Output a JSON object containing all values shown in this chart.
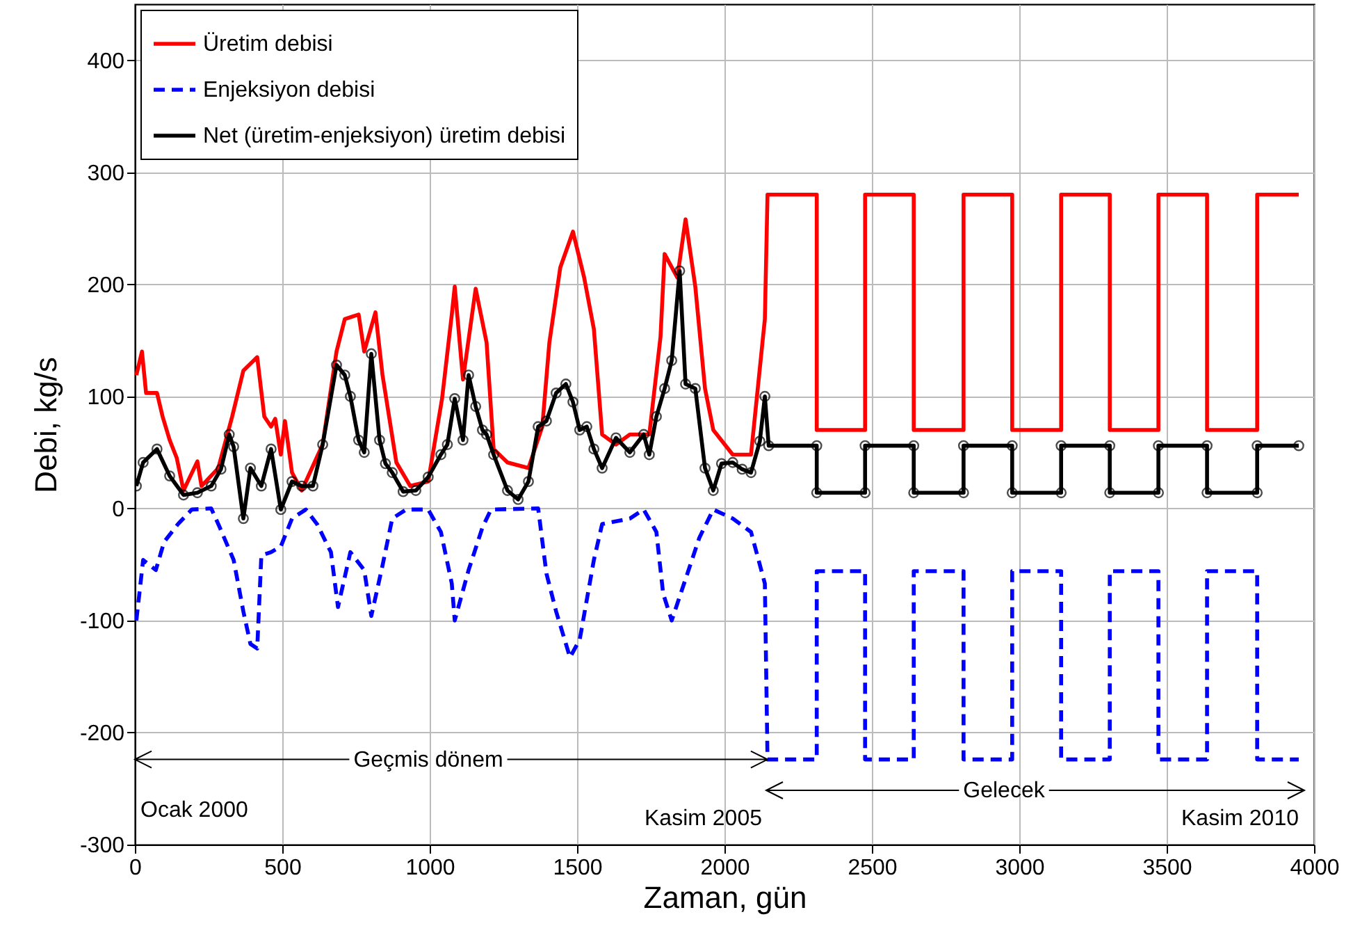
{
  "chart_data": {
    "type": "line",
    "xlabel": "Zaman, gün",
    "ylabel": "Debi, kg/s",
    "xlim": [
      0,
      4000
    ],
    "xticks": [
      0,
      500,
      1000,
      1500,
      2000,
      2500,
      3000,
      3500,
      4000
    ],
    "ylim": [
      -300,
      450
    ],
    "yticks": [
      -300,
      -200,
      -100,
      0,
      100,
      200,
      300,
      400
    ],
    "grid": true,
    "legend": "top left",
    "series": [
      {
        "name": "Üretim debisi",
        "color": "#ff0000",
        "line_style": "solid",
        "marker": "none",
        "x": [
          5,
          24,
          38,
          75,
          94,
          118,
          142,
          165,
          212,
          226,
          283,
          330,
          368,
          415,
          439,
          462,
          476,
          495,
          509,
          533,
          566,
          637,
          684,
          712,
          759,
          778,
          816,
          840,
          887,
          934,
          995,
          1042,
          1075,
          1085,
          1113,
          1156,
          1193,
          1217,
          1264,
          1335,
          1382,
          1406,
          1443,
          1486,
          1524,
          1557,
          1585,
          1632,
          1679,
          1745,
          1783,
          1797,
          1840,
          1868,
          1901,
          1934,
          1962,
          2028,
          2090,
          2137,
          2146,
          2313,
          2313,
          2477,
          2477,
          2642,
          2642,
          2811,
          2811,
          2976,
          2976,
          3142,
          3142,
          3307,
          3307,
          3472,
          3472,
          3637,
          3637,
          3807,
          3807,
          3948
        ],
        "values": [
          119,
          140,
          103,
          103,
          82,
          61,
          45,
          16,
          42,
          20,
          36,
          82,
          123,
          135,
          82,
          73,
          80,
          48,
          78,
          32,
          16,
          57,
          140,
          169,
          173,
          140,
          175,
          119,
          41,
          20,
          24,
          98,
          173,
          198,
          115,
          196,
          148,
          53,
          41,
          36,
          73,
          148,
          215,
          247,
          206,
          160,
          66,
          57,
          66,
          66,
          153,
          227,
          206,
          258,
          198,
          107,
          70,
          48,
          48,
          169,
          280,
          280,
          70,
          70,
          280,
          280,
          70,
          70,
          280,
          280,
          70,
          70,
          280,
          280,
          70,
          70,
          280,
          280,
          70,
          70,
          280,
          280
        ]
      },
      {
        "name": "Enjeksiyon debisi",
        "color": "#0000ff",
        "line_style": "dashed",
        "marker": "none",
        "x": [
          5,
          28,
          71,
          99,
          146,
          193,
          259,
          288,
          335,
          368,
          392,
          415,
          429,
          462,
          495,
          533,
          580,
          618,
          665,
          689,
          731,
          778,
          802,
          840,
          873,
          920,
          995,
          1038,
          1075,
          1085,
          1132,
          1179,
          1208,
          1368,
          1396,
          1429,
          1476,
          1509,
          1557,
          1585,
          1679,
          1726,
          1769,
          1792,
          1821,
          1868,
          1915,
          1962,
          2028,
          2090,
          2137,
          2146,
          2313,
          2313,
          2477,
          2477,
          2642,
          2642,
          2811,
          2811,
          2976,
          2976,
          3142,
          3142,
          3307,
          3307,
          3472,
          3472,
          3637,
          3637,
          3807,
          3807,
          3948
        ],
        "values": [
          -100,
          -46,
          -55,
          -30,
          -14,
          -1,
          0,
          -17,
          -46,
          -92,
          -121,
          -125,
          -42,
          -39,
          -34,
          -9,
          -1,
          -14,
          -39,
          -88,
          -39,
          -55,
          -96,
          -51,
          -9,
          -1,
          -1,
          -21,
          -67,
          -100,
          -55,
          -17,
          -1,
          0,
          -58,
          -92,
          -133,
          -117,
          -46,
          -14,
          -9,
          -1,
          -21,
          -76,
          -100,
          -63,
          -26,
          -1,
          -9,
          -21,
          -67,
          -224,
          -224,
          -56,
          -56,
          -224,
          -224,
          -56,
          -56,
          -224,
          -224,
          -56,
          -56,
          -224,
          -224,
          -56,
          -56,
          -224,
          -224,
          -56,
          -56,
          -224,
          -224
        ]
      },
      {
        "name": "Net (üretim-enjeksiyon) üretim debisi",
        "color": "#000000",
        "line_style": "solid",
        "marker": "circle",
        "x": [
          5,
          28,
          75,
          118,
          165,
          212,
          259,
          292,
          320,
          335,
          368,
          392,
          429,
          462,
          495,
          533,
          566,
          604,
          637,
          684,
          712,
          731,
          759,
          778,
          802,
          830,
          850,
          873,
          910,
          953,
          995,
          1038,
          1060,
          1085,
          1113,
          1132,
          1156,
          1179,
          1193,
          1217,
          1264,
          1300,
          1335,
          1368,
          1396,
          1429,
          1462,
          1486,
          1509,
          1533,
          1557,
          1585,
          1632,
          1679,
          1726,
          1745,
          1769,
          1797,
          1821,
          1848,
          1868,
          1901,
          1934,
          1962,
          1990,
          2028,
          2060,
          2090,
          2120,
          2137,
          2150,
          2313,
          2313,
          2477,
          2477,
          2642,
          2642,
          2811,
          2811,
          2976,
          2976,
          3142,
          3142,
          3307,
          3307,
          3472,
          3472,
          3637,
          3637,
          3807,
          3807,
          3948
        ],
        "values": [
          20,
          41,
          53,
          29,
          12,
          14,
          20,
          35,
          66,
          55,
          -9,
          36,
          20,
          53,
          -1,
          24,
          20,
          20,
          57,
          128,
          119,
          100,
          61,
          50,
          138,
          61,
          40,
          32,
          15,
          16,
          28,
          48,
          57,
          98,
          61,
          119,
          91,
          70,
          66,
          48,
          16,
          8,
          24,
          73,
          78,
          103,
          111,
          95,
          70,
          73,
          53,
          36,
          63,
          50,
          66,
          48,
          82,
          107,
          132,
          212,
          111,
          107,
          36,
          16,
          40,
          41,
          35,
          32,
          60,
          100,
          56,
          56,
          14,
          14,
          56,
          56,
          14,
          14,
          56,
          56,
          14,
          14,
          56,
          56,
          14,
          14,
          56,
          56,
          14,
          14,
          56,
          56
        ]
      }
    ],
    "annotations": [
      {
        "text": "Geçmis dönem",
        "x": 2146,
        "y": -224
      },
      "Gelecek",
      "Ocak 2000",
      "Kasim 2005",
      "Kasim 2010"
    ]
  }
}
